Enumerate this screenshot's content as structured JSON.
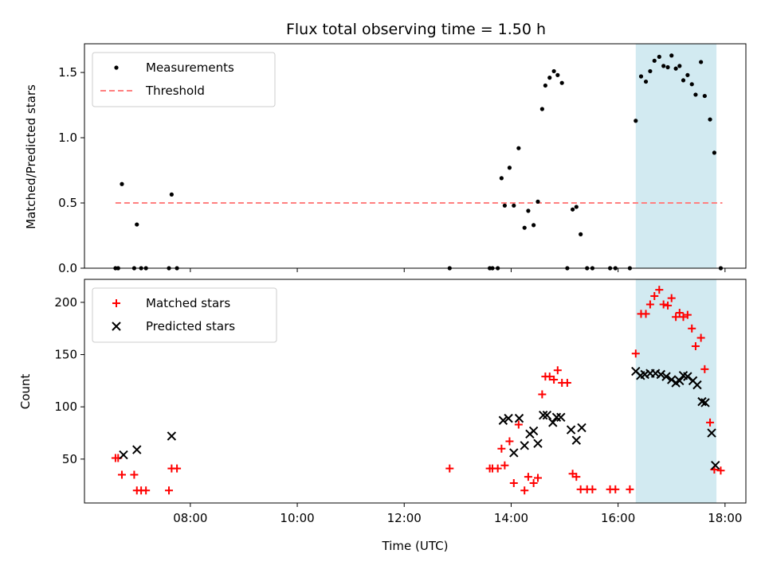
{
  "chart_data": [
    {
      "type": "scatter",
      "title": "Flux total observing time = 1.50 h",
      "xlabel": "",
      "ylabel": "Matched/Predicted stars",
      "ylim": [
        0,
        1.72
      ],
      "xlim": [
        6.02,
        18.39
      ],
      "y_ticks": [
        "0.0",
        "0.5",
        "1.0",
        "1.5"
      ],
      "y_tick_values": [
        0,
        0.5,
        1.0,
        1.5
      ],
      "shaded_region": {
        "x": [
          16.33,
          17.84
        ],
        "color": "#add8e6"
      },
      "threshold": {
        "name": "Threshold",
        "y": 0.5,
        "x": [
          6.6,
          17.95
        ],
        "color": "#ff7f7f"
      },
      "legend_position": "upper-left",
      "series": [
        {
          "name": "Measurements",
          "color": "#000000",
          "marker": "dot",
          "points": [
            [
              6.6,
              0
            ],
            [
              6.65,
              0
            ],
            [
              6.72,
              0.645
            ],
            [
              6.95,
              0
            ],
            [
              7.0,
              0.335
            ],
            [
              7.08,
              0
            ],
            [
              7.17,
              0
            ],
            [
              7.6,
              0
            ],
            [
              7.65,
              0.565
            ],
            [
              7.75,
              0
            ],
            [
              12.85,
              0
            ],
            [
              13.6,
              0
            ],
            [
              13.65,
              0
            ],
            [
              13.75,
              0
            ],
            [
              13.82,
              0.69
            ],
            [
              13.88,
              0.48
            ],
            [
              13.97,
              0.77
            ],
            [
              14.05,
              0.48
            ],
            [
              14.14,
              0.92
            ],
            [
              14.25,
              0.31
            ],
            [
              14.32,
              0.44
            ],
            [
              14.42,
              0.33
            ],
            [
              14.5,
              0.51
            ],
            [
              14.58,
              1.22
            ],
            [
              14.64,
              1.4
            ],
            [
              14.72,
              1.46
            ],
            [
              14.8,
              1.51
            ],
            [
              14.87,
              1.48
            ],
            [
              14.95,
              1.42
            ],
            [
              15.05,
              0
            ],
            [
              15.15,
              0.45
            ],
            [
              15.22,
              0.47
            ],
            [
              15.3,
              0.26
            ],
            [
              15.42,
              0
            ],
            [
              15.52,
              0
            ],
            [
              15.85,
              0
            ],
            [
              15.95,
              0
            ],
            [
              16.22,
              0
            ],
            [
              16.33,
              1.13
            ],
            [
              16.43,
              1.47
            ],
            [
              16.52,
              1.43
            ],
            [
              16.6,
              1.51
            ],
            [
              16.68,
              1.59
            ],
            [
              16.77,
              1.62
            ],
            [
              16.85,
              1.55
            ],
            [
              16.93,
              1.54
            ],
            [
              17.0,
              1.63
            ],
            [
              17.08,
              1.53
            ],
            [
              17.15,
              1.55
            ],
            [
              17.22,
              1.44
            ],
            [
              17.3,
              1.48
            ],
            [
              17.38,
              1.41
            ],
            [
              17.45,
              1.33
            ],
            [
              17.55,
              1.58
            ],
            [
              17.62,
              1.32
            ],
            [
              17.72,
              1.14
            ],
            [
              17.8,
              0.885
            ],
            [
              17.92,
              0
            ]
          ]
        }
      ]
    },
    {
      "type": "scatter",
      "title": "",
      "xlabel": "Time (UTC)",
      "ylabel": "Count",
      "ylim": [
        8,
        222
      ],
      "xlim": [
        6.02,
        18.39
      ],
      "y_ticks": [
        "50",
        "100",
        "150",
        "200"
      ],
      "y_tick_values": [
        50,
        100,
        150,
        200
      ],
      "x_ticks": [
        "08:00",
        "10:00",
        "12:00",
        "14:00",
        "16:00",
        "18:00"
      ],
      "x_tick_values": [
        8,
        10,
        12,
        14,
        16,
        18
      ],
      "shaded_region": {
        "x": [
          16.33,
          17.84
        ],
        "color": "#add8e6"
      },
      "legend_position": "upper-left",
      "series": [
        {
          "name": "Matched stars",
          "color": "#ff0000",
          "marker": "plus",
          "points": [
            [
              6.6,
              51
            ],
            [
              6.65,
              51
            ],
            [
              6.72,
              35
            ],
            [
              6.95,
              35
            ],
            [
              7.0,
              20
            ],
            [
              7.08,
              20
            ],
            [
              7.17,
              20
            ],
            [
              7.6,
              20
            ],
            [
              7.65,
              41
            ],
            [
              7.75,
              41
            ],
            [
              12.85,
              41
            ],
            [
              13.6,
              41
            ],
            [
              13.65,
              41
            ],
            [
              13.75,
              41
            ],
            [
              13.82,
              60
            ],
            [
              13.88,
              44
            ],
            [
              13.97,
              67
            ],
            [
              14.05,
              27
            ],
            [
              14.14,
              83
            ],
            [
              14.25,
              20
            ],
            [
              14.32,
              33
            ],
            [
              14.42,
              27
            ],
            [
              14.5,
              32
            ],
            [
              14.58,
              112
            ],
            [
              14.64,
              129
            ],
            [
              14.72,
              129
            ],
            [
              14.8,
              126
            ],
            [
              14.87,
              135
            ],
            [
              14.95,
              123
            ],
            [
              15.05,
              123
            ],
            [
              15.15,
              36
            ],
            [
              15.22,
              33
            ],
            [
              15.3,
              21
            ],
            [
              15.42,
              21
            ],
            [
              15.52,
              21
            ],
            [
              15.85,
              21
            ],
            [
              15.95,
              21
            ],
            [
              16.22,
              21
            ],
            [
              16.33,
              151
            ],
            [
              16.43,
              189
            ],
            [
              16.52,
              189
            ],
            [
              16.6,
              198
            ],
            [
              16.68,
              206
            ],
            [
              16.77,
              212
            ],
            [
              16.85,
              198
            ],
            [
              16.93,
              197
            ],
            [
              17.0,
              204
            ],
            [
              17.08,
              186
            ],
            [
              17.15,
              190
            ],
            [
              17.22,
              186
            ],
            [
              17.3,
              188
            ],
            [
              17.38,
              175
            ],
            [
              17.45,
              158
            ],
            [
              17.55,
              166
            ],
            [
              17.62,
              136
            ],
            [
              17.72,
              85
            ],
            [
              17.8,
              40
            ],
            [
              17.92,
              39
            ]
          ]
        },
        {
          "name": "Predicted stars",
          "color": "#000000",
          "marker": "x",
          "points": [
            [
              6.75,
              54
            ],
            [
              7.0,
              59
            ],
            [
              7.65,
              72
            ],
            [
              13.85,
              87
            ],
            [
              13.95,
              89
            ],
            [
              14.05,
              56
            ],
            [
              14.15,
              89
            ],
            [
              14.25,
              63
            ],
            [
              14.35,
              74
            ],
            [
              14.42,
              77
            ],
            [
              14.5,
              65
            ],
            [
              14.6,
              92
            ],
            [
              14.67,
              92
            ],
            [
              14.78,
              85
            ],
            [
              14.85,
              90
            ],
            [
              14.93,
              90
            ],
            [
              15.12,
              78
            ],
            [
              15.22,
              68
            ],
            [
              15.32,
              80
            ],
            [
              16.33,
              134
            ],
            [
              16.42,
              130
            ],
            [
              16.5,
              131
            ],
            [
              16.6,
              132
            ],
            [
              16.7,
              132
            ],
            [
              16.8,
              131
            ],
            [
              16.9,
              129
            ],
            [
              17.0,
              126
            ],
            [
              17.08,
              123
            ],
            [
              17.15,
              125
            ],
            [
              17.22,
              130
            ],
            [
              17.3,
              129
            ],
            [
              17.4,
              125
            ],
            [
              17.48,
              121
            ],
            [
              17.57,
              105
            ],
            [
              17.63,
              104
            ],
            [
              17.75,
              75
            ],
            [
              17.82,
              44
            ]
          ]
        }
      ]
    }
  ]
}
